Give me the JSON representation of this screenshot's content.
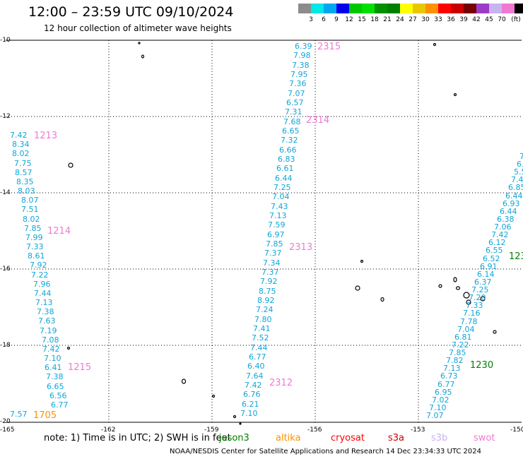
{
  "header": {
    "title": "12:00 – 23:59 UTC 09/10/2024",
    "subtitle": "12 hour collection of altimeter wave heights"
  },
  "legend": {
    "items": [
      {
        "color": "#8c8c8c",
        "label": ""
      },
      {
        "color": "#00e8e8",
        "label": "3"
      },
      {
        "color": "#00a8f0",
        "label": "6"
      },
      {
        "color": "#0000ee",
        "label": "9"
      },
      {
        "color": "#00c800",
        "label": "12"
      },
      {
        "color": "#00e000",
        "label": "15"
      },
      {
        "color": "#009000",
        "label": "18"
      },
      {
        "color": "#008000",
        "label": "21"
      },
      {
        "color": "#ffff00",
        "label": "24"
      },
      {
        "color": "#e8c800",
        "label": "27"
      },
      {
        "color": "#ff9000",
        "label": "30"
      },
      {
        "color": "#ff0000",
        "label": "33"
      },
      {
        "color": "#c80000",
        "label": "36"
      },
      {
        "color": "#780000",
        "label": "39"
      },
      {
        "color": "#9b3cc8",
        "label": "42"
      },
      {
        "color": "#c8b4f0",
        "label": "45"
      },
      {
        "color": "#f07ad2",
        "label": "70"
      },
      {
        "color": "#000000",
        "label": "(ft)"
      }
    ]
  },
  "axes": {
    "lat_labels": [
      "-10",
      "-12",
      "-14",
      "-16",
      "-18",
      "-20"
    ],
    "lon_labels": [
      "-165",
      "-162",
      "-159",
      "-156",
      "-153",
      "-150"
    ]
  },
  "tracks": [
    {
      "values": [
        "6.39",
        "7.98",
        "7.38",
        "7.95",
        "7.36",
        "7.07",
        "6.57",
        "7.31",
        "7.68",
        "6.65",
        "7.32",
        "6.66",
        "6.83",
        "6.61",
        "6.44",
        "7.25",
        "7.04",
        "7.43",
        "7.13",
        "7.59",
        "6.97",
        "7.85",
        "7.37",
        "7.34",
        "7.37",
        "7.92",
        "8.75",
        "8.92",
        "7.24",
        "7.80",
        "7.41",
        "7.52",
        "7.44",
        "6.77",
        "6.40",
        "7.64",
        "7.42",
        "6.76",
        "6.21",
        "7.10"
      ]
    },
    {
      "values": [
        "7.42",
        "8.34",
        "8.02",
        "7.75",
        "8.57",
        "8.35",
        "8.03",
        "8.07",
        "7.51",
        "8.02",
        "7.85",
        "7.99",
        "7.33",
        "8.61",
        "7.92",
        "7.22",
        "7.96",
        "7.44",
        "7.13",
        "7.38",
        "7.63",
        "7.19",
        "7.08",
        "7.42",
        "7.10",
        "6.41",
        "7.38",
        "6.65",
        "6.56",
        "6.77",
        "7.57"
      ]
    },
    {
      "values": [
        "7.07",
        "7.10",
        "7.02",
        "6.95",
        "6.77",
        "6.73",
        "7.13",
        "7.82",
        "7.85",
        "7.22",
        "6.81",
        "7.04",
        "7.78",
        "7.16",
        "7.33",
        "7.20",
        "7.25",
        "6.37",
        "6.14",
        "6.91",
        "6.52",
        "6.55",
        "6.12",
        "7.42",
        "7.06",
        "6.38",
        "6.44",
        "6.93",
        "6.44",
        "6.85",
        "7.45",
        "5.5",
        "6.",
        "7."
      ]
    }
  ],
  "time_labels": [
    {
      "text": "2315",
      "color": "#f07ad2"
    },
    {
      "text": "2314",
      "color": "#f07ad2"
    },
    {
      "text": "2313",
      "color": "#f07ad2"
    },
    {
      "text": "2312",
      "color": "#f07ad2"
    },
    {
      "text": "1213",
      "color": "#f07ad2"
    },
    {
      "text": "1214",
      "color": "#f07ad2"
    },
    {
      "text": "1215",
      "color": "#f07ad2"
    },
    {
      "text": "1705",
      "color": "#ff9000"
    },
    {
      "text": "1230",
      "color": "#008000"
    },
    {
      "text": "123",
      "color": "#008000"
    }
  ],
  "note": "note: 1) Time is in UTC; 2) SWH is in feet",
  "satellites": [
    {
      "name": "jason3",
      "color": "#008000"
    },
    {
      "name": "altika",
      "color": "#ff9000"
    },
    {
      "name": "cryosat",
      "color": "#ff0000"
    },
    {
      "name": "s3a",
      "color": "#c80000"
    },
    {
      "name": "s3b",
      "color": "#c8b4f0"
    },
    {
      "name": "swot",
      "color": "#f07ad2"
    }
  ],
  "footer": "NOAA/NESDIS Center for Satellite Applications and Research     14 Dec 23:34:33 UTC 2024"
}
